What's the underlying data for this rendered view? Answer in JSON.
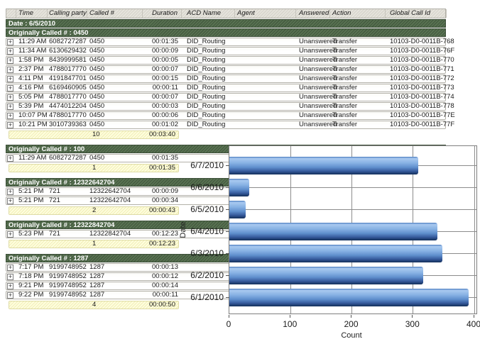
{
  "icons": {
    "expand_glyph": "+"
  },
  "colors": {
    "group_band_green": "#4e6449",
    "summary_yellow": "#fdf9cd",
    "header_gray": "#dfddd5",
    "bar_blue_light": "#a9c9f0",
    "bar_blue_dark": "#16315c",
    "grid_gray": "#8c8c8c"
  },
  "table": {
    "columns": [
      "",
      "Time",
      "Calling party #",
      "Called #",
      "Duration",
      "ACD Name",
      "Agent",
      "Answered",
      "Action",
      "Global Call Id"
    ],
    "date_label": "Date : 6/5/2010",
    "groups": [
      {
        "title": "Originally Called # : 0450",
        "rows": [
          {
            "time": "11:29 AM",
            "calling": "6082727287",
            "called": "0450",
            "duration": "00:01:35",
            "acd": "DID_Routing",
            "agent": "",
            "answered": "Unanswered",
            "action": "Transfer",
            "global_id": "10103-D0-0011B-768"
          },
          {
            "time": "11:34 AM",
            "calling": "6130629432",
            "called": "0450",
            "duration": "00:00:09",
            "acd": "DID_Routing",
            "agent": "",
            "answered": "Unanswered",
            "action": "Transfer",
            "global_id": "10103-D0-0011B-76F"
          },
          {
            "time": "1:58 PM",
            "calling": "8439999581",
            "called": "0450",
            "duration": "00:00:05",
            "acd": "DID_Routing",
            "agent": "",
            "answered": "Unanswered",
            "action": "Transfer",
            "global_id": "10103-D0-0011B-770"
          },
          {
            "time": "2:37 PM",
            "calling": "4788017770",
            "called": "0450",
            "duration": "00:00:07",
            "acd": "DID_Routing",
            "agent": "",
            "answered": "Unanswered",
            "action": "Transfer",
            "global_id": "10103-D0-0011B-771"
          },
          {
            "time": "4:11 PM",
            "calling": "4191847701",
            "called": "0450",
            "duration": "00:00:15",
            "acd": "DID_Routing",
            "agent": "",
            "answered": "Unanswered",
            "action": "Transfer",
            "global_id": "10103-D0-0011B-772"
          },
          {
            "time": "4:16 PM",
            "calling": "6169460905",
            "called": "0450",
            "duration": "00:00:11",
            "acd": "DID_Routing",
            "agent": "",
            "answered": "Unanswered",
            "action": "Transfer",
            "global_id": "10103-D0-0011B-773"
          },
          {
            "time": "5:05 PM",
            "calling": "4788017770",
            "called": "0450",
            "duration": "00:00:07",
            "acd": "DID_Routing",
            "agent": "",
            "answered": "Unanswered",
            "action": "Transfer",
            "global_id": "10103-D0-0011B-774"
          },
          {
            "time": "5:39 PM",
            "calling": "4474012204",
            "called": "0450",
            "duration": "00:00:03",
            "acd": "DID_Routing",
            "agent": "",
            "answered": "Unanswered",
            "action": "Transfer",
            "global_id": "10103-D0-0011B-778"
          },
          {
            "time": "10:07 PM",
            "calling": "4788017770",
            "called": "0450",
            "duration": "00:00:06",
            "acd": "DID_Routing",
            "agent": "",
            "answered": "Unanswered",
            "action": "Transfer",
            "global_id": "10103-D0-0011B-77E"
          },
          {
            "time": "10:21 PM",
            "calling": "3010739363",
            "called": "0450",
            "duration": "00:01:02",
            "acd": "DID_Routing",
            "agent": "",
            "answered": "Unanswered",
            "action": "Transfer",
            "global_id": "10103-D0-0011B-77F"
          }
        ],
        "summary": {
          "count": "10",
          "total_duration": "00:03:40"
        }
      },
      {
        "title": "Originally Called # : 100",
        "rows": [
          {
            "time": "11:29 AM",
            "calling": "6082727287",
            "called": "0450",
            "duration": "00:01:35"
          }
        ],
        "summary": {
          "count": "1",
          "total_duration": "00:01:35"
        }
      },
      {
        "title": "Originally Called # : 12322642704",
        "rows": [
          {
            "time": "5:21 PM",
            "calling": "721",
            "called": "12322642704",
            "duration": "00:00:09"
          },
          {
            "time": "5:21 PM",
            "calling": "721",
            "called": "12322642704",
            "duration": "00:00:34"
          }
        ],
        "summary": {
          "count": "2",
          "total_duration": "00:00:43"
        }
      },
      {
        "title": "Originally Called # : 12322842704",
        "rows": [
          {
            "time": "5:23 PM",
            "calling": "721",
            "called": "12322842704",
            "duration": "00:12:23"
          }
        ],
        "summary": {
          "count": "1",
          "total_duration": "00:12:23"
        }
      },
      {
        "title": "Originally Called # : 1287",
        "rows": [
          {
            "time": "7:17 PM",
            "calling": "9199748952",
            "called": "1287",
            "duration": "00:00:13"
          },
          {
            "time": "7:18 PM",
            "calling": "9199748952",
            "called": "1287",
            "duration": "00:00:12"
          },
          {
            "time": "9:21 PM",
            "calling": "9199748952",
            "called": "1287",
            "duration": "00:00:14"
          },
          {
            "time": "9:22 PM",
            "calling": "9199748952",
            "called": "1287",
            "duration": "00:00:11"
          }
        ],
        "summary": {
          "count": "4",
          "total_duration": "00:00:50"
        }
      }
    ]
  },
  "chart_data": {
    "type": "bar",
    "orientation": "horizontal",
    "categories": [
      "6/7/2010",
      "6/6/2010",
      "6/5/2010",
      "6/4/2010",
      "6/3/2010",
      "6/2/2010",
      "6/1/2010"
    ],
    "values": [
      308,
      33,
      27,
      340,
      348,
      317,
      391
    ],
    "title": "",
    "xlabel": "Count",
    "ylabel": "Date",
    "xlim": [
      0,
      400
    ],
    "xticks": [
      0,
      100,
      200,
      300,
      400
    ],
    "grid": true,
    "legend": "none"
  }
}
